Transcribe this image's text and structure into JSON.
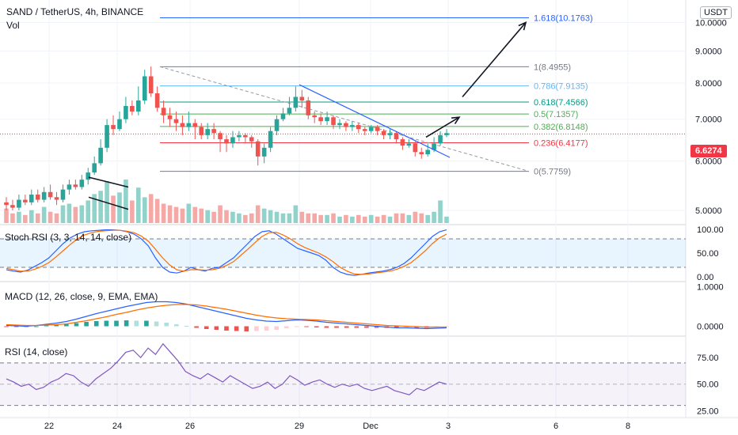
{
  "header": {
    "title": "SAND / TetherUS, 4h, BINANCE",
    "volume_label": "Vol",
    "currency_badge": "USDT"
  },
  "last_price": {
    "label": "6.6274",
    "value": 6.6274,
    "color": "#f23645"
  },
  "colors": {
    "up": "#26a69a",
    "down": "#ef5350",
    "up_vol": "#8fd3cb",
    "down_vol": "#f4a9a7"
  },
  "chart_data": [
    {
      "type": "candlestick",
      "title": "SAND / TetherUS, 4h, BINANCE",
      "x_ticks": [
        "22",
        "24",
        "26",
        "29",
        "Dec",
        "3",
        "6",
        "8"
      ],
      "y_ticks": [
        "5.0000",
        "6.0000",
        "7.0000",
        "8.0000",
        "9.0000",
        "10.0000"
      ],
      "ylim": [
        4.8,
        10.4
      ],
      "log_scale": true,
      "fib_levels": [
        {
          "label": "0(5.7759)",
          "value": 5.7759,
          "color": "#787b86"
        },
        {
          "label": "0.236(6.4177)",
          "value": 6.4177,
          "color": "#f23645"
        },
        {
          "label": "0.382(6.8148)",
          "value": 6.8148,
          "color": "#4caf50"
        },
        {
          "label": "0.5(7.1357)",
          "value": 7.1357,
          "color": "#4caf50"
        },
        {
          "label": "0.618(7.4566)",
          "value": 7.4566,
          "color": "#089981"
        },
        {
          "label": "0.786(7.9135)",
          "value": 7.9135,
          "color": "#64b5f6"
        },
        {
          "label": "1(8.4955)",
          "value": 8.4955,
          "color": "#787b86"
        },
        {
          "label": "1.618(10.1763)",
          "value": 10.1763,
          "color": "#2962ff"
        }
      ],
      "candles": [
        [
          5.15,
          5.1,
          5.25,
          5.0
        ],
        [
          5.1,
          5.05,
          5.2,
          5.0
        ],
        [
          5.05,
          5.2,
          5.3,
          5.0
        ],
        [
          5.2,
          5.15,
          5.3,
          5.1
        ],
        [
          5.15,
          5.3,
          5.4,
          5.1
        ],
        [
          5.3,
          5.2,
          5.4,
          5.15
        ],
        [
          5.2,
          5.35,
          5.45,
          5.15
        ],
        [
          5.35,
          5.25,
          5.5,
          5.2
        ],
        [
          5.25,
          5.2,
          5.35,
          5.1
        ],
        [
          5.2,
          5.4,
          5.5,
          5.15
        ],
        [
          5.4,
          5.5,
          5.6,
          5.3
        ],
        [
          5.5,
          5.45,
          5.6,
          5.4
        ],
        [
          5.45,
          5.6,
          5.7,
          5.4
        ],
        [
          5.6,
          5.75,
          5.85,
          5.5
        ],
        [
          5.75,
          5.95,
          6.1,
          5.7
        ],
        [
          5.95,
          6.3,
          6.5,
          5.9
        ],
        [
          6.3,
          6.85,
          7.0,
          6.2
        ],
        [
          6.85,
          6.75,
          7.1,
          6.6
        ],
        [
          6.75,
          7.0,
          7.2,
          6.7
        ],
        [
          7.0,
          7.35,
          7.6,
          6.9
        ],
        [
          7.35,
          7.2,
          7.5,
          7.1
        ],
        [
          7.2,
          7.5,
          7.9,
          7.1
        ],
        [
          7.5,
          8.2,
          8.4,
          7.4
        ],
        [
          8.2,
          7.7,
          8.5,
          7.6
        ],
        [
          7.7,
          7.3,
          7.9,
          7.2
        ],
        [
          7.3,
          7.1,
          7.5,
          6.9
        ],
        [
          7.1,
          7.0,
          7.3,
          6.8
        ],
        [
          7.0,
          6.9,
          7.2,
          6.7
        ],
        [
          6.9,
          6.8,
          7.1,
          6.6
        ],
        [
          6.8,
          6.9,
          7.2,
          6.7
        ],
        [
          6.9,
          6.8,
          7.0,
          6.5
        ],
        [
          6.8,
          6.6,
          6.9,
          6.5
        ],
        [
          6.6,
          6.75,
          6.9,
          6.5
        ],
        [
          6.75,
          6.65,
          6.9,
          6.5
        ],
        [
          6.65,
          6.5,
          6.7,
          6.2
        ],
        [
          6.5,
          6.4,
          6.6,
          6.2
        ],
        [
          6.4,
          6.55,
          6.7,
          6.3
        ],
        [
          6.55,
          6.6,
          6.7,
          6.45
        ],
        [
          6.6,
          6.55,
          6.65,
          6.4
        ],
        [
          6.55,
          6.45,
          6.6,
          6.3
        ],
        [
          6.45,
          6.1,
          6.5,
          5.9
        ],
        [
          6.1,
          6.3,
          6.4,
          5.95
        ],
        [
          6.3,
          6.7,
          6.8,
          6.2
        ],
        [
          6.7,
          7.0,
          7.1,
          6.6
        ],
        [
          7.0,
          7.15,
          7.3,
          6.95
        ],
        [
          7.15,
          7.3,
          7.6,
          7.1
        ],
        [
          7.3,
          7.6,
          7.9,
          7.2
        ],
        [
          7.6,
          7.5,
          7.8,
          7.3
        ],
        [
          7.5,
          7.1,
          7.6,
          7.0
        ],
        [
          7.1,
          7.05,
          7.2,
          6.9
        ],
        [
          7.05,
          6.95,
          7.15,
          6.85
        ],
        [
          6.95,
          7.05,
          7.2,
          6.85
        ],
        [
          7.05,
          6.85,
          7.1,
          6.75
        ],
        [
          6.85,
          6.9,
          7.0,
          6.75
        ],
        [
          6.9,
          6.8,
          6.95,
          6.7
        ],
        [
          6.8,
          6.85,
          6.95,
          6.7
        ],
        [
          6.85,
          6.75,
          6.9,
          6.65
        ],
        [
          6.75,
          6.7,
          6.8,
          6.6
        ],
        [
          6.7,
          6.8,
          6.85,
          6.65
        ],
        [
          6.8,
          6.7,
          6.85,
          6.6
        ],
        [
          6.7,
          6.6,
          6.75,
          6.5
        ],
        [
          6.6,
          6.65,
          6.75,
          6.5
        ],
        [
          6.65,
          6.5,
          6.7,
          6.4
        ],
        [
          6.5,
          6.35,
          6.55,
          6.25
        ],
        [
          6.35,
          6.4,
          6.5,
          6.3
        ],
        [
          6.4,
          6.2,
          6.45,
          6.1
        ],
        [
          6.2,
          6.15,
          6.3,
          6.05
        ],
        [
          6.15,
          6.25,
          6.4,
          6.1
        ],
        [
          6.25,
          6.4,
          6.55,
          6.2
        ],
        [
          6.4,
          6.6,
          6.7,
          6.35
        ],
        [
          6.6,
          6.65,
          6.75,
          6.55
        ]
      ],
      "volume": [
        0.45,
        0.3,
        0.35,
        0.25,
        0.4,
        0.3,
        0.5,
        0.35,
        0.3,
        0.55,
        0.6,
        0.5,
        0.55,
        0.7,
        0.9,
        1.0,
        1.3,
        0.85,
        0.95,
        1.35,
        0.7,
        1.1,
        0.8,
        0.9,
        0.75,
        0.6,
        0.55,
        0.5,
        0.45,
        0.6,
        0.5,
        0.45,
        0.4,
        0.35,
        0.55,
        0.4,
        0.35,
        0.3,
        0.25,
        0.3,
        0.55,
        0.45,
        0.4,
        0.35,
        0.3,
        0.3,
        0.55,
        0.35,
        0.3,
        0.3,
        0.25,
        0.25,
        0.3,
        0.2,
        0.25,
        0.2,
        0.25,
        0.2,
        0.25,
        0.2,
        0.25,
        0.2,
        0.3,
        0.3,
        0.25,
        0.35,
        0.3,
        0.25,
        0.35,
        0.7,
        0.2
      ]
    },
    {
      "type": "line",
      "title": "Stoch RSI (3, 3, 14, 14, close)",
      "y_ticks": [
        "0.00",
        "50.00",
        "100.00"
      ],
      "ylim": [
        0,
        100
      ],
      "bands": [
        20,
        80
      ],
      "series": [
        {
          "name": "K",
          "color": "#2962ff",
          "values": [
            15,
            12,
            10,
            14,
            22,
            30,
            40,
            55,
            70,
            82,
            90,
            95,
            97,
            98,
            99,
            99,
            98,
            95,
            90,
            80,
            65,
            40,
            20,
            10,
            8,
            12,
            20,
            15,
            12,
            18,
            20,
            30,
            40,
            55,
            70,
            85,
            95,
            97,
            90,
            80,
            70,
            60,
            55,
            50,
            45,
            35,
            20,
            10,
            5,
            3,
            5,
            8,
            10,
            12,
            15,
            20,
            28,
            40,
            55,
            70,
            85,
            95,
            99
          ]
        },
        {
          "name": "D",
          "color": "#ff6d00",
          "values": [
            18,
            15,
            12,
            12,
            16,
            22,
            30,
            42,
            55,
            68,
            80,
            88,
            93,
            96,
            97,
            98,
            98,
            96,
            93,
            86,
            75,
            58,
            40,
            25,
            15,
            12,
            15,
            15,
            14,
            15,
            18,
            24,
            32,
            45,
            58,
            72,
            85,
            93,
            94,
            88,
            80,
            70,
            62,
            56,
            50,
            42,
            32,
            20,
            12,
            6,
            5,
            6,
            8,
            10,
            12,
            16,
            22,
            30,
            42,
            55,
            70,
            82,
            90
          ]
        }
      ]
    },
    {
      "type": "bar",
      "title": "MACD (12, 26, close, 9, EMA, EMA)",
      "y_ticks": [
        "0.0000",
        "1.0000"
      ],
      "ylim": [
        -0.15,
        1.05
      ],
      "series": [
        {
          "name": "MACD",
          "color": "#2962ff",
          "values": [
            0.02,
            0.01,
            0.0,
            0.02,
            0.05,
            0.08,
            0.12,
            0.18,
            0.25,
            0.32,
            0.38,
            0.44,
            0.5,
            0.55,
            0.6,
            0.62,
            0.62,
            0.6,
            0.56,
            0.5,
            0.44,
            0.38,
            0.32,
            0.26,
            0.2,
            0.16,
            0.13,
            0.12,
            0.14,
            0.16,
            0.15,
            0.13,
            0.1,
            0.08,
            0.06,
            0.04,
            0.02,
            0.0,
            -0.02,
            -0.04,
            -0.04,
            -0.05,
            -0.06,
            -0.05,
            -0.04
          ]
        },
        {
          "name": "Signal",
          "color": "#ff6d00",
          "values": [
            0.04,
            0.03,
            0.02,
            0.02,
            0.03,
            0.04,
            0.06,
            0.1,
            0.14,
            0.19,
            0.24,
            0.3,
            0.35,
            0.41,
            0.46,
            0.5,
            0.53,
            0.55,
            0.55,
            0.54,
            0.51,
            0.47,
            0.43,
            0.38,
            0.33,
            0.28,
            0.24,
            0.21,
            0.19,
            0.18,
            0.17,
            0.16,
            0.14,
            0.12,
            0.1,
            0.08,
            0.06,
            0.04,
            0.02,
            0.01,
            0.0,
            -0.01,
            -0.02,
            -0.02,
            -0.02
          ]
        },
        {
          "name": "Histogram",
          "color": "#26a69a",
          "values": [
            -0.02,
            -0.02,
            -0.02,
            0.0,
            0.02,
            0.04,
            0.06,
            0.08,
            0.11,
            0.13,
            0.14,
            0.14,
            0.15,
            0.14,
            0.14,
            0.12,
            0.09,
            0.05,
            0.01,
            -0.04,
            -0.07,
            -0.09,
            -0.11,
            -0.12,
            -0.13,
            -0.12,
            -0.11,
            -0.09,
            -0.05,
            -0.02,
            -0.02,
            -0.03,
            -0.04,
            -0.04,
            -0.04,
            -0.04,
            -0.04,
            -0.04,
            -0.04,
            -0.05,
            -0.04,
            -0.04,
            -0.04,
            -0.03,
            -0.02
          ]
        }
      ]
    },
    {
      "type": "line",
      "title": "RSI (14, close)",
      "y_ticks": [
        "25.00",
        "50.00",
        "75.00"
      ],
      "ylim": [
        23,
        90
      ],
      "bands": [
        30,
        70
      ],
      "series": [
        {
          "name": "RSI",
          "color": "#7e57c2",
          "values": [
            55,
            52,
            48,
            50,
            45,
            47,
            52,
            55,
            60,
            58,
            52,
            48,
            55,
            60,
            65,
            72,
            80,
            82,
            75,
            84,
            78,
            88,
            80,
            72,
            62,
            58,
            55,
            60,
            56,
            52,
            58,
            54,
            50,
            46,
            48,
            52,
            46,
            50,
            58,
            54,
            49,
            52,
            54,
            50,
            47,
            50,
            48,
            50,
            46,
            44,
            46,
            48,
            44,
            42,
            40,
            46,
            44,
            48,
            52,
            50
          ]
        }
      ]
    }
  ]
}
